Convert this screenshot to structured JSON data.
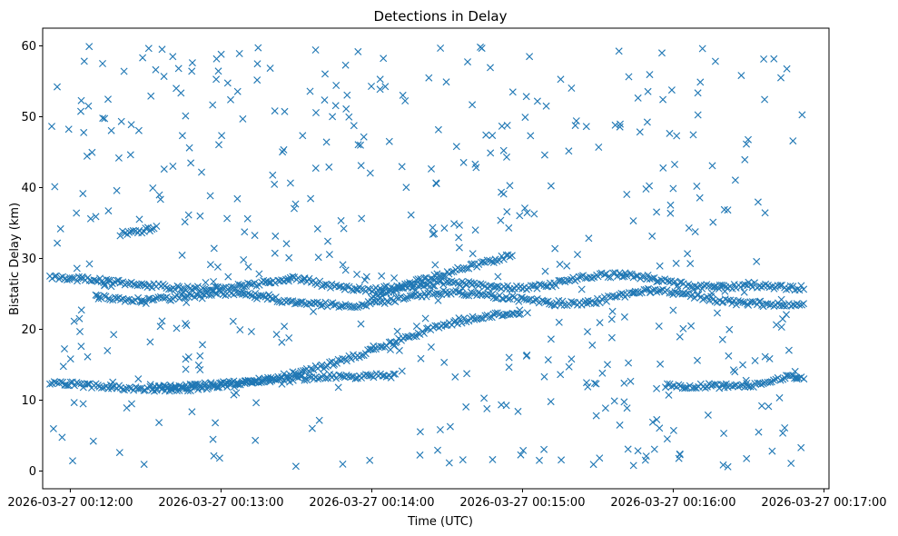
{
  "chart_data": {
    "type": "scatter",
    "title": "Detections in Delay",
    "xlabel": "Time (UTC)",
    "ylabel": "Bistatic Delay (km)",
    "marker": "x",
    "marker_color": "#1f77b4",
    "grid": false,
    "xlim": [
      "2026-03-27 00:11:49",
      "2026-03-27 00:17:02"
    ],
    "ylim": [
      -2.5,
      62.5
    ],
    "x_ticks": [
      "2026-03-27 00:12:00",
      "2026-03-27 00:13:00",
      "2026-03-27 00:14:00",
      "2026-03-27 00:15:00",
      "2026-03-27 00:16:00",
      "2026-03-27 00:17:00"
    ],
    "y_ticks": [
      "0",
      "10",
      "20",
      "30",
      "40",
      "50",
      "60"
    ],
    "tracks": [
      {
        "x": [
          "2026-03-27 00:11:52",
          "2026-03-27 00:12:00",
          "2026-03-27 00:12:10",
          "2026-03-27 00:12:20",
          "2026-03-27 00:12:30",
          "2026-03-27 00:12:40",
          "2026-03-27 00:12:50",
          "2026-03-27 00:13:00",
          "2026-03-27 00:13:10",
          "2026-03-27 00:13:20",
          "2026-03-27 00:13:30",
          "2026-03-27 00:13:40",
          "2026-03-27 00:13:50",
          "2026-03-27 00:14:00",
          "2026-03-27 00:14:10",
          "2026-03-27 00:14:20",
          "2026-03-27 00:14:30",
          "2026-03-27 00:14:40",
          "2026-03-27 00:14:50",
          "2026-03-27 00:15:00"
        ],
        "y": [
          12.5,
          12.3,
          12.0,
          11.7,
          11.6,
          11.5,
          11.7,
          12.0,
          12.4,
          13.0,
          13.8,
          14.7,
          15.8,
          17.0,
          18.3,
          19.6,
          20.8,
          21.5,
          22.0,
          22.3
        ]
      },
      {
        "x": [
          "2026-03-27 00:12:32",
          "2026-03-27 00:12:40",
          "2026-03-27 00:12:50",
          "2026-03-27 00:13:00",
          "2026-03-27 00:13:10",
          "2026-03-27 00:13:20",
          "2026-03-27 00:13:30",
          "2026-03-27 00:13:40",
          "2026-03-27 00:13:50",
          "2026-03-27 00:14:00",
          "2026-03-27 00:14:10"
        ],
        "y": [
          11.9,
          11.8,
          12.0,
          12.3,
          12.6,
          12.9,
          13.1,
          13.3,
          13.4,
          13.4,
          13.4
        ]
      },
      {
        "x": [
          "2026-03-27 00:15:57",
          "2026-03-27 00:16:05",
          "2026-03-27 00:16:15",
          "2026-03-27 00:16:25",
          "2026-03-27 00:16:35",
          "2026-03-27 00:16:45",
          "2026-03-27 00:16:52"
        ],
        "y": [
          12.0,
          12.0,
          12.0,
          12.0,
          12.2,
          13.3,
          13.0
        ]
      },
      {
        "x": [
          "2026-03-27 00:11:52",
          "2026-03-27 00:12:00",
          "2026-03-27 00:12:10",
          "2026-03-27 00:12:20",
          "2026-03-27 00:12:30",
          "2026-03-27 00:12:40",
          "2026-03-27 00:12:50",
          "2026-03-27 00:13:00",
          "2026-03-27 00:13:10",
          "2026-03-27 00:13:20",
          "2026-03-27 00:13:30",
          "2026-03-27 00:13:40",
          "2026-03-27 00:13:50",
          "2026-03-27 00:14:00",
          "2026-03-27 00:14:10",
          "2026-03-27 00:14:20",
          "2026-03-27 00:14:30",
          "2026-03-27 00:14:40",
          "2026-03-27 00:14:50",
          "2026-03-27 00:15:00",
          "2026-03-27 00:15:10",
          "2026-03-27 00:15:20",
          "2026-03-27 00:15:30",
          "2026-03-27 00:15:40",
          "2026-03-27 00:15:50",
          "2026-03-27 00:16:00",
          "2026-03-27 00:16:10",
          "2026-03-27 00:16:20",
          "2026-03-27 00:16:30",
          "2026-03-27 00:16:40",
          "2026-03-27 00:16:52"
        ],
        "y": [
          27.5,
          27.2,
          26.9,
          26.6,
          26.3,
          26.0,
          25.7,
          25.8,
          26.2,
          26.7,
          27.3,
          26.4,
          25.8,
          25.6,
          25.9,
          26.3,
          26.6,
          26.4,
          26.0,
          25.8,
          26.2,
          27.0,
          27.6,
          27.7,
          27.3,
          26.5,
          26.0,
          25.9,
          26.3,
          26.0,
          25.8
        ]
      },
      {
        "x": [
          "2026-03-27 00:12:10",
          "2026-03-27 00:12:20",
          "2026-03-27 00:12:30",
          "2026-03-27 00:12:40",
          "2026-03-27 00:12:50",
          "2026-03-27 00:13:00",
          "2026-03-27 00:13:10",
          "2026-03-27 00:13:20",
          "2026-03-27 00:13:30",
          "2026-03-27 00:13:40",
          "2026-03-27 00:13:50",
          "2026-03-27 00:14:00",
          "2026-03-27 00:14:10",
          "2026-03-27 00:14:20",
          "2026-03-27 00:14:30",
          "2026-03-27 00:14:40",
          "2026-03-27 00:14:50",
          "2026-03-27 00:15:00",
          "2026-03-27 00:15:10",
          "2026-03-27 00:15:20",
          "2026-03-27 00:15:30",
          "2026-03-27 00:15:40",
          "2026-03-27 00:15:50",
          "2026-03-27 00:16:00",
          "2026-03-27 00:16:10",
          "2026-03-27 00:16:20",
          "2026-03-27 00:16:30",
          "2026-03-27 00:16:40",
          "2026-03-27 00:16:52"
        ],
        "y": [
          24.6,
          24.3,
          24.0,
          24.4,
          24.9,
          25.2,
          24.8,
          24.3,
          23.9,
          23.5,
          23.3,
          23.6,
          24.2,
          24.8,
          25.2,
          25.0,
          24.6,
          24.2,
          23.8,
          23.6,
          24.0,
          24.8,
          25.5,
          25.2,
          24.6,
          24.0,
          23.6,
          23.5,
          23.6
        ]
      },
      {
        "x": [
          "2026-03-27 00:14:00",
          "2026-03-27 00:14:10",
          "2026-03-27 00:14:20",
          "2026-03-27 00:14:30",
          "2026-03-27 00:14:40",
          "2026-03-27 00:14:50",
          "2026-03-27 00:14:56"
        ],
        "y": [
          24.5,
          25.8,
          27.0,
          28.0,
          29.0,
          29.9,
          30.5
        ]
      },
      {
        "x": [
          "2026-03-27 00:12:20",
          "2026-03-27 00:12:25",
          "2026-03-27 00:12:30",
          "2026-03-27 00:12:35"
        ],
        "y": [
          33.5,
          33.7,
          34.0,
          34.3
        ]
      }
    ],
    "noise_points": 520,
    "noise_y_range": [
      0.5,
      60
    ]
  }
}
